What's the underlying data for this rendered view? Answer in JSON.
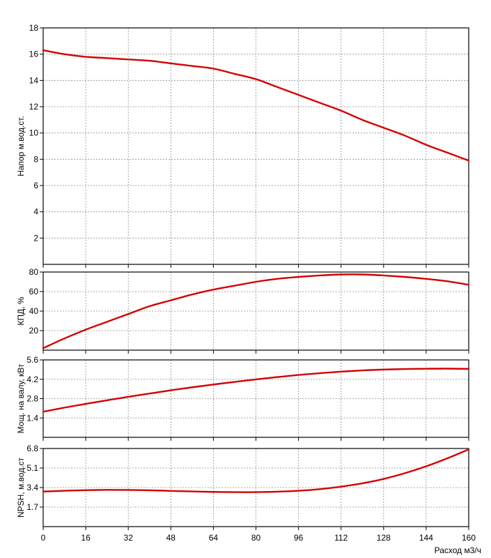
{
  "chart_data": [
    {
      "type": "line",
      "title": "",
      "xlabel": "",
      "ylabel": "Напор м.вод.ст.",
      "xlim": [
        0,
        160
      ],
      "ylim": [
        0,
        18
      ],
      "x_ticks": [
        "0",
        "16",
        "32",
        "48",
        "64",
        "80",
        "96",
        "112",
        "128",
        "144",
        "160"
      ],
      "y_ticks": [
        "2",
        "4",
        "6",
        "8",
        "10",
        "12",
        "14",
        "16",
        "18"
      ],
      "grid": true,
      "series": [
        {
          "color": "#d40000",
          "x": [
            0,
            8,
            16,
            24,
            32,
            40,
            48,
            56,
            64,
            72,
            80,
            88,
            96,
            104,
            112,
            120,
            128,
            136,
            144,
            152,
            160
          ],
          "y": [
            16.3,
            16.0,
            15.8,
            15.7,
            15.6,
            15.5,
            15.3,
            15.1,
            14.9,
            14.5,
            14.1,
            13.5,
            12.9,
            12.3,
            11.7,
            11.0,
            10.4,
            9.8,
            9.1,
            8.5,
            7.9
          ]
        }
      ]
    },
    {
      "type": "line",
      "title": "",
      "xlabel": "",
      "ylabel": "КПД, %",
      "xlim": [
        0,
        160
      ],
      "ylim": [
        0,
        80
      ],
      "x_ticks": [
        "0",
        "16",
        "32",
        "48",
        "64",
        "80",
        "96",
        "112",
        "128",
        "144",
        "160"
      ],
      "y_ticks": [
        "20",
        "40",
        "60",
        "80"
      ],
      "grid": true,
      "series": [
        {
          "color": "#d40000",
          "x": [
            0,
            8,
            16,
            24,
            32,
            40,
            48,
            56,
            64,
            72,
            80,
            88,
            96,
            104,
            112,
            120,
            128,
            136,
            144,
            152,
            160
          ],
          "y": [
            2,
            12,
            21,
            29,
            37,
            45,
            51,
            57,
            62,
            66,
            70,
            73,
            75,
            76.5,
            77.5,
            77.5,
            76.5,
            75,
            73,
            70.5,
            67
          ]
        }
      ]
    },
    {
      "type": "line",
      "title": "",
      "xlabel": "",
      "ylabel": "Мощ. на валу, кВт",
      "xlim": [
        0,
        160
      ],
      "ylim": [
        0,
        5.6
      ],
      "x_ticks": [
        "0",
        "16",
        "32",
        "48",
        "64",
        "80",
        "96",
        "112",
        "128",
        "144",
        "160"
      ],
      "y_ticks": [
        "1.4",
        "2.8",
        "4.2",
        "5.6"
      ],
      "grid": true,
      "series": [
        {
          "color": "#d40000",
          "x": [
            0,
            8,
            16,
            24,
            32,
            40,
            48,
            56,
            64,
            72,
            80,
            88,
            96,
            104,
            112,
            120,
            128,
            136,
            144,
            152,
            160
          ],
          "y": [
            1.85,
            2.15,
            2.42,
            2.68,
            2.93,
            3.17,
            3.4,
            3.62,
            3.82,
            4.01,
            4.19,
            4.36,
            4.51,
            4.64,
            4.75,
            4.84,
            4.9,
            4.94,
            4.96,
            4.97,
            4.95
          ]
        }
      ]
    },
    {
      "type": "line",
      "title": "",
      "xlabel": "Расход м3/ч",
      "ylabel": "NPSH, м.вод.ст",
      "xlim": [
        0,
        160
      ],
      "ylim": [
        0,
        6.8
      ],
      "x_ticks": [
        "0",
        "16",
        "32",
        "48",
        "64",
        "80",
        "96",
        "112",
        "128",
        "144",
        "160"
      ],
      "y_ticks": [
        "1.7",
        "3.4",
        "5.1",
        "6.8"
      ],
      "grid": true,
      "series": [
        {
          "color": "#d40000",
          "x": [
            0,
            8,
            16,
            24,
            32,
            40,
            48,
            56,
            64,
            72,
            80,
            88,
            96,
            104,
            112,
            120,
            128,
            136,
            144,
            152,
            160
          ],
          "y": [
            3.05,
            3.12,
            3.17,
            3.2,
            3.19,
            3.16,
            3.11,
            3.06,
            3.02,
            3.0,
            3.0,
            3.04,
            3.12,
            3.26,
            3.48,
            3.77,
            4.15,
            4.65,
            5.25,
            5.95,
            6.72
          ]
        }
      ]
    }
  ]
}
